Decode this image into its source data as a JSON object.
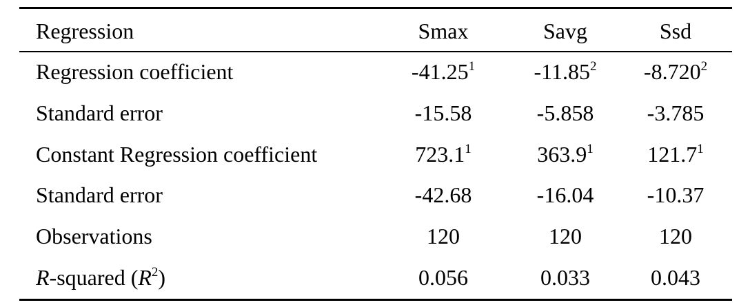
{
  "table": {
    "header": [
      "Regression",
      "Smax",
      "Savg",
      "Ssd"
    ],
    "rows": [
      {
        "label": [
          {
            "t": "Regression coefficient"
          }
        ],
        "cells": [
          {
            "v": "-41.25",
            "sup": "1"
          },
          {
            "v": "-11.85",
            "sup": "2"
          },
          {
            "v": "-8.720",
            "sup": "2"
          }
        ]
      },
      {
        "label": [
          {
            "t": "Standard error"
          }
        ],
        "cells": [
          {
            "v": "-15.58"
          },
          {
            "v": "-5.858"
          },
          {
            "v": "-3.785"
          }
        ]
      },
      {
        "label": [
          {
            "t": "Constant Regression coefficient"
          }
        ],
        "cells": [
          {
            "v": "723.1",
            "sup": "1"
          },
          {
            "v": "363.9",
            "sup": "1"
          },
          {
            "v": "121.7",
            "sup": "1"
          }
        ]
      },
      {
        "label": [
          {
            "t": "Standard error"
          }
        ],
        "cells": [
          {
            "v": "-42.68"
          },
          {
            "v": "-16.04"
          },
          {
            "v": "-10.37"
          }
        ]
      },
      {
        "label": [
          {
            "t": "Observations"
          }
        ],
        "cells": [
          {
            "v": "120"
          },
          {
            "v": "120"
          },
          {
            "v": "120"
          }
        ]
      },
      {
        "label": [
          {
            "t": "R",
            "i": true
          },
          {
            "t": "-squared ("
          },
          {
            "t": "R",
            "i": true,
            "sup": "2"
          },
          {
            "t": ")"
          }
        ],
        "cells": [
          {
            "v": "0.056"
          },
          {
            "v": "0.033"
          },
          {
            "v": "0.043"
          }
        ]
      }
    ]
  }
}
